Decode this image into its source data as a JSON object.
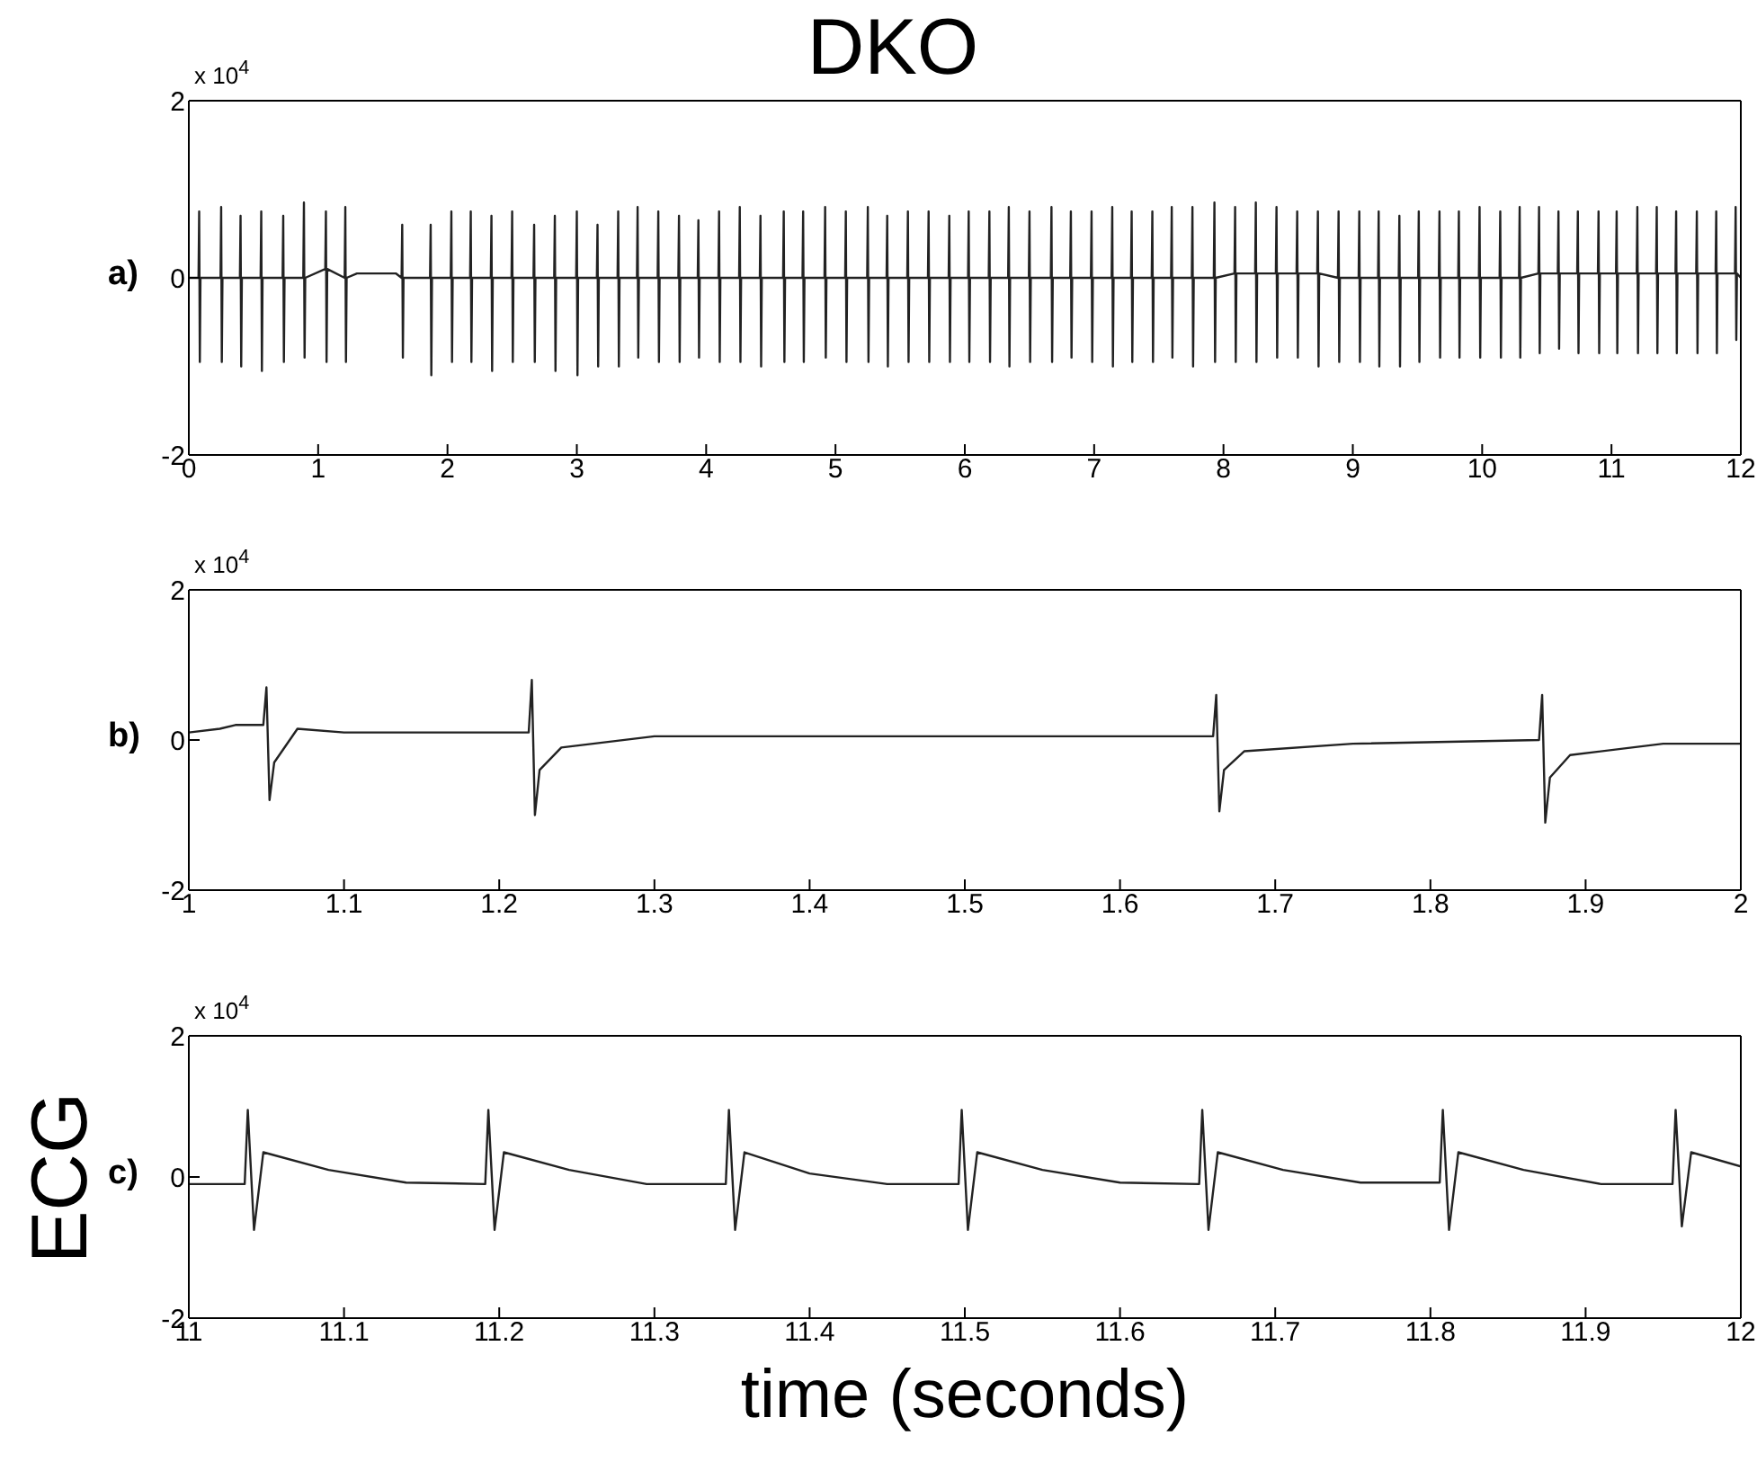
{
  "chart_data": [
    {
      "type": "line",
      "title": "DKO",
      "annotations": [
        "a)",
        "x 10$^{4}$"
      ],
      "xlim": [
        0,
        12
      ],
      "xticks": [
        0,
        1,
        2,
        3,
        4,
        5,
        6,
        7,
        8,
        9,
        10,
        11,
        12
      ],
      "ylim": [
        -2,
        2
      ],
      "yticks": [
        -2,
        0,
        2
      ],
      "series": [
        {
          "color": "#222222",
          "x": [
            0,
            0.075,
            0.08,
            0.085,
            0.09,
            0.245,
            0.25,
            0.255,
            0.26,
            0.395,
            0.4,
            0.405,
            0.41,
            0.555,
            0.56,
            0.565,
            0.57,
            0.725,
            0.73,
            0.735,
            0.74,
            0.885,
            0.89,
            0.895,
            0.9,
            1.055,
            1.06,
            1.065,
            1.07,
            1.205,
            1.21,
            1.215,
            1.22,
            1.3,
            1.6,
            1.645,
            1.65,
            1.655,
            1.66,
            1.865,
            1.87,
            1.875,
            1.88,
            2.025,
            2.03,
            2.035,
            2.04,
            2.175,
            2.18,
            2.185,
            2.19,
            2.335,
            2.34,
            2.345,
            2.35,
            2.495,
            2.5,
            2.505,
            2.51,
            2.665,
            2.67,
            2.675,
            2.68,
            2.825,
            2.83,
            2.835,
            2.84,
            2.995,
            3.0,
            3.005,
            3.01,
            3.155,
            3.16,
            3.165,
            3.17,
            3.315,
            3.32,
            3.325,
            3.33,
            3.465,
            3.47,
            3.475,
            3.48,
            3.625,
            3.63,
            3.635,
            3.64,
            3.785,
            3.79,
            3.795,
            3.8,
            3.935,
            3.94,
            3.945,
            3.95,
            4.095,
            4.1,
            4.105,
            4.11,
            4.255,
            4.26,
            4.265,
            4.27,
            4.415,
            4.42,
            4.425,
            4.43,
            4.595,
            4.6,
            4.605,
            4.61,
            4.745,
            4.75,
            4.755,
            4.76,
            4.915,
            4.92,
            4.925,
            4.93,
            5.075,
            5.08,
            5.085,
            5.09,
            5.245,
            5.25,
            5.255,
            5.26,
            5.395,
            5.4,
            5.405,
            5.41,
            5.555,
            5.56,
            5.565,
            5.57,
            5.715,
            5.72,
            5.725,
            5.73,
            5.875,
            5.88,
            5.885,
            5.89,
            6.025,
            6.03,
            6.035,
            6.04,
            6.185,
            6.19,
            6.195,
            6.2,
            6.335,
            6.34,
            6.345,
            6.35,
            6.495,
            6.5,
            6.505,
            6.51,
            6.665,
            6.67,
            6.675,
            6.68,
            6.815,
            6.82,
            6.825,
            6.83,
            6.975,
            6.98,
            6.985,
            6.99,
            7.135,
            7.14,
            7.145,
            7.15,
            7.285,
            7.29,
            7.295,
            7.3,
            7.445,
            7.45,
            7.455,
            7.46,
            7.595,
            7.6,
            7.605,
            7.61,
            7.755,
            7.76,
            7.765,
            7.77,
            7.925,
            7.93,
            7.935,
            7.94,
            8.085,
            8.09,
            8.095,
            8.1,
            8.245,
            8.25,
            8.255,
            8.26,
            8.405,
            8.41,
            8.415,
            8.42,
            8.565,
            8.57,
            8.575,
            8.58,
            8.725,
            8.73,
            8.735,
            8.74,
            8.885,
            8.89,
            8.895,
            8.9,
            9.045,
            9.05,
            9.055,
            9.06,
            9.195,
            9.2,
            9.205,
            9.21,
            9.355,
            9.36,
            9.365,
            9.37,
            9.505,
            9.51,
            9.515,
            9.52,
            9.665,
            9.67,
            9.675,
            9.68,
            9.815,
            9.82,
            9.825,
            9.83,
            9.975,
            9.98,
            9.985,
            9.99,
            10.135,
            10.14,
            10.145,
            10.15,
            10.285,
            10.29,
            10.295,
            10.3,
            10.435,
            10.44,
            10.445,
            10.45,
            10.585,
            10.59,
            10.595,
            10.6,
            10.735,
            10.74,
            10.745,
            10.75,
            10.895,
            10.9,
            10.905,
            10.91,
            11.035,
            11.04,
            11.045,
            11.05,
            11.195,
            11.2,
            11.205,
            11.21,
            11.345,
            11.35,
            11.355,
            11.36,
            11.495,
            11.5,
            11.505,
            11.51,
            11.655,
            11.66,
            11.665,
            11.67,
            11.805,
            11.81,
            11.815,
            11.82,
            11.955,
            11.96,
            11.965,
            11.97,
            12.0
          ],
          "values": [
            0,
            0,
            0.75,
            -0.95,
            0,
            0,
            0.8,
            -0.95,
            0,
            0,
            0.7,
            -1.0,
            0,
            0,
            0.75,
            -1.05,
            0,
            0,
            0.7,
            -0.95,
            0,
            0,
            0.85,
            -0.9,
            0,
            0.1,
            0.75,
            -0.95,
            0.1,
            0,
            0.8,
            -0.95,
            0,
            0.05,
            0.05,
            0,
            0.6,
            -0.9,
            0,
            0,
            0.6,
            -1.1,
            0,
            0,
            0.75,
            -0.95,
            0,
            0,
            0.75,
            -0.95,
            0,
            0,
            0.7,
            -1.05,
            0,
            0,
            0.75,
            -0.95,
            0,
            0,
            0.6,
            -0.95,
            0,
            0,
            0.7,
            -1.05,
            0,
            0,
            0.75,
            -1.1,
            0,
            0,
            0.6,
            -1.0,
            0,
            0,
            0.75,
            -1.0,
            0,
            0,
            0.8,
            -0.9,
            0,
            0,
            0.75,
            -0.95,
            0,
            0,
            0.7,
            -0.95,
            0,
            0,
            0.65,
            -0.9,
            0,
            0,
            0.75,
            -0.95,
            0,
            0,
            0.8,
            -0.95,
            0,
            0,
            0.7,
            -1.0,
            0,
            0,
            0.75,
            -0.95,
            0,
            0,
            0.75,
            -0.95,
            0,
            0,
            0.8,
            -0.9,
            0,
            0,
            0.75,
            -0.95,
            0,
            0,
            0.8,
            -0.95,
            0,
            0,
            0.7,
            -1.0,
            0,
            0,
            0.75,
            -0.95,
            0,
            0,
            0.75,
            -0.95,
            0,
            0,
            0.7,
            -0.95,
            0,
            0,
            0.75,
            -0.95,
            0,
            0,
            0.75,
            -0.95,
            0,
            0,
            0.8,
            -1.0,
            0,
            0,
            0.75,
            -0.95,
            0,
            0,
            0.8,
            -0.95,
            0,
            0,
            0.75,
            -0.9,
            0,
            0,
            0.75,
            -0.95,
            0,
            0,
            0.8,
            -1.0,
            0,
            0,
            0.75,
            -0.95,
            0,
            0,
            0.75,
            -0.95,
            0,
            0,
            0.8,
            -0.9,
            0,
            0,
            0.8,
            -1.0,
            0,
            0,
            0.85,
            -0.95,
            0,
            0.05,
            0.8,
            -0.95,
            0.05,
            0.05,
            0.85,
            -0.95,
            0.05,
            0.05,
            0.8,
            -0.9,
            0.05,
            0.05,
            0.75,
            -0.9,
            0.05,
            0.05,
            0.75,
            -1.0,
            0.05,
            0,
            0.75,
            -0.95,
            0,
            0,
            0.75,
            -0.95,
            0,
            0,
            0.75,
            -1.0,
            0,
            0,
            0.7,
            -1.0,
            0,
            0,
            0.75,
            -0.95,
            0,
            0,
            0.75,
            -0.9,
            0,
            0,
            0.75,
            -0.9,
            0,
            0,
            0.8,
            -0.9,
            0,
            0,
            0.75,
            -0.9,
            0,
            0,
            0.8,
            -0.9,
            0,
            0.05,
            0.8,
            -0.85,
            0.05,
            0.05,
            0.75,
            -0.8,
            0.05,
            0.05,
            0.75,
            -0.85,
            0.05,
            0.05,
            0.75,
            -0.85,
            0.05,
            0.05,
            0.75,
            -0.85,
            0.05,
            0.05,
            0.8,
            -0.85,
            0.05,
            0.05,
            0.8,
            -0.85,
            0.05,
            0.05,
            0.75,
            -0.85,
            0.05,
            0.05,
            0.75,
            -0.85,
            0.05,
            0.05,
            0.75,
            -0.85,
            0.05,
            0.05,
            0.8,
            -0.7,
            0.05,
            0
          ]
        }
      ]
    },
    {
      "type": "line",
      "annotations": [
        "b)",
        "x 10$^{4}$"
      ],
      "xlim": [
        1,
        2
      ],
      "xticks": [
        1,
        1.1,
        1.2,
        1.3,
        1.4,
        1.5,
        1.6,
        1.7,
        1.8,
        1.9,
        2
      ],
      "ylim": [
        -2,
        2
      ],
      "yticks": [
        -2,
        0,
        2
      ],
      "series": [
        {
          "color": "#222222",
          "x": [
            1.0,
            1.02,
            1.03,
            1.048,
            1.05,
            1.052,
            1.055,
            1.07,
            1.1,
            1.2,
            1.219,
            1.221,
            1.223,
            1.226,
            1.24,
            1.3,
            1.5,
            1.66,
            1.662,
            1.664,
            1.667,
            1.68,
            1.75,
            1.87,
            1.872,
            1.874,
            1.877,
            1.89,
            1.95,
            2.0
          ],
          "values": [
            0.1,
            0.15,
            0.2,
            0.2,
            0.7,
            -0.8,
            -0.3,
            0.15,
            0.1,
            0.1,
            0.1,
            0.8,
            -1.0,
            -0.4,
            -0.1,
            0.05,
            0.05,
            0.05,
            0.6,
            -0.95,
            -0.4,
            -0.15,
            -0.05,
            0.0,
            0.6,
            -1.1,
            -0.5,
            -0.2,
            -0.05,
            -0.05
          ]
        }
      ]
    },
    {
      "type": "line",
      "annotations": [
        "c)",
        "x 10$^{4}$"
      ],
      "xlabel": "time (seconds)",
      "ylabel": "ECG",
      "xlim": [
        11,
        12
      ],
      "xticks": [
        11,
        11.1,
        11.2,
        11.3,
        11.4,
        11.5,
        11.6,
        11.7,
        11.8,
        11.9,
        12
      ],
      "ylim": [
        -2,
        2
      ],
      "yticks": [
        -2,
        0,
        2
      ],
      "series": [
        {
          "color": "#222222",
          "x": [
            11.0,
            11.036,
            11.038,
            11.042,
            11.048,
            11.09,
            11.14,
            11.191,
            11.193,
            11.197,
            11.203,
            11.245,
            11.295,
            11.346,
            11.348,
            11.352,
            11.358,
            11.4,
            11.45,
            11.496,
            11.498,
            11.502,
            11.508,
            11.55,
            11.6,
            11.651,
            11.653,
            11.657,
            11.663,
            11.705,
            11.755,
            11.806,
            11.808,
            11.812,
            11.818,
            11.86,
            11.91,
            11.956,
            11.958,
            11.962,
            11.968,
            12.0
          ],
          "values": [
            -0.1,
            -0.1,
            0.95,
            -0.75,
            0.35,
            0.1,
            -0.08,
            -0.1,
            0.95,
            -0.75,
            0.35,
            0.1,
            -0.1,
            -0.1,
            0.95,
            -0.75,
            0.35,
            0.05,
            -0.1,
            -0.1,
            0.95,
            -0.75,
            0.35,
            0.1,
            -0.08,
            -0.1,
            0.95,
            -0.75,
            0.35,
            0.1,
            -0.08,
            -0.08,
            0.95,
            -0.75,
            0.35,
            0.1,
            -0.1,
            -0.1,
            0.95,
            -0.7,
            0.35,
            0.15
          ]
        }
      ]
    }
  ]
}
